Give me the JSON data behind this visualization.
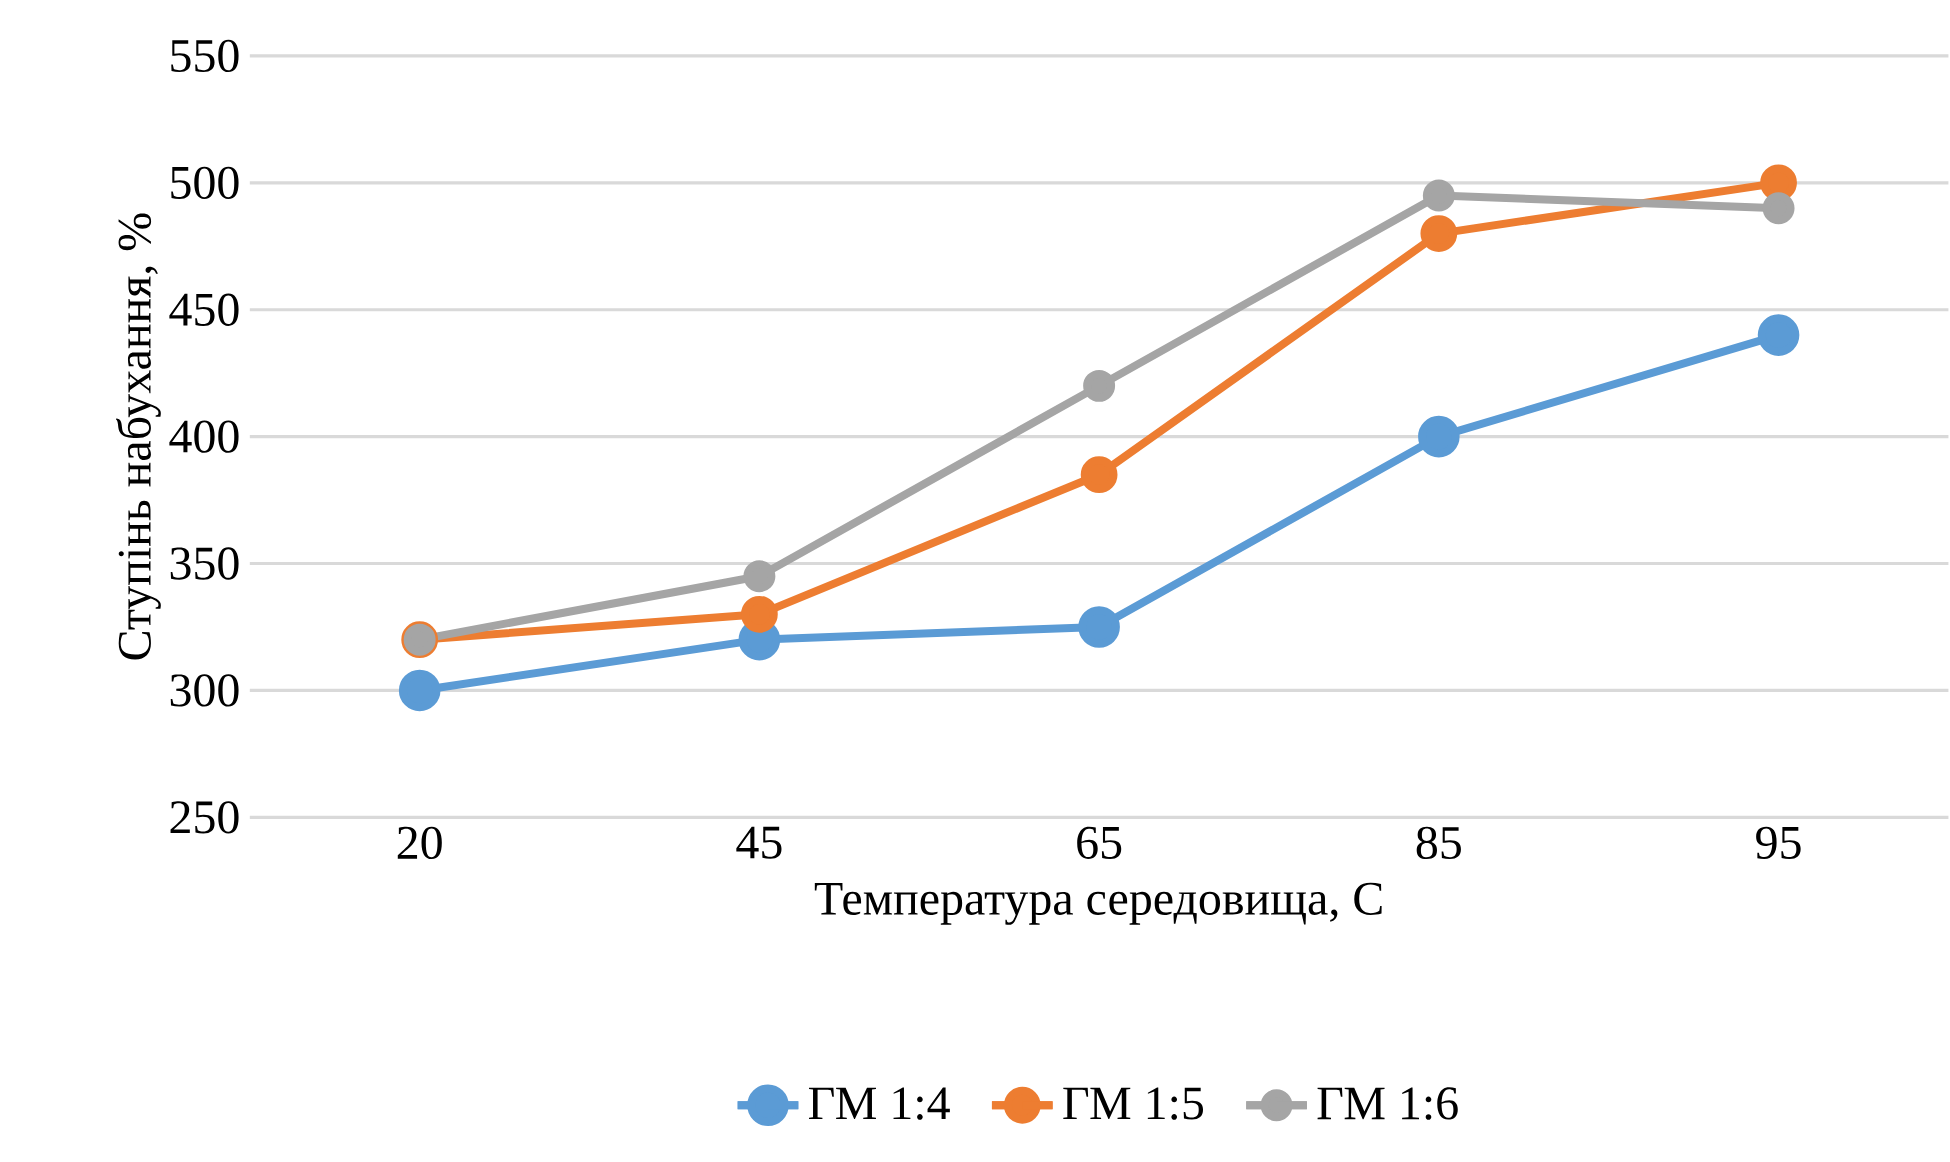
{
  "chart_data": {
    "type": "line",
    "xlabel": "Температура середовища,  С",
    "ylabel": "Ступінь набухання, %",
    "categories": [
      "20",
      "45",
      "65",
      "85",
      "95"
    ],
    "series": [
      {
        "name": "ГМ 1:4",
        "color": "#5b9bd5",
        "values": [
          300,
          320,
          325,
          400,
          440
        ]
      },
      {
        "name": "ГМ 1:5",
        "color": "#ed7d31",
        "values": [
          320,
          330,
          385,
          480,
          500
        ]
      },
      {
        "name": "ГМ 1:6",
        "color": "#a5a5a5",
        "values": [
          320,
          345,
          420,
          495,
          490
        ]
      }
    ],
    "ylim": [
      250,
      550
    ],
    "yticks": [
      250,
      300,
      350,
      400,
      450,
      500,
      550
    ],
    "grid": "y",
    "legend": "bottom",
    "marker": "circle",
    "line_style": "solid"
  }
}
